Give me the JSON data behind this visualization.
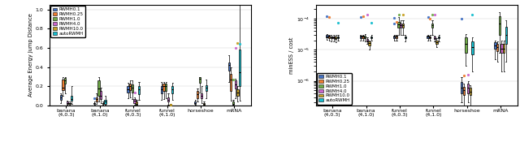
{
  "methods": [
    "RWMH0.1",
    "RWMH0.25",
    "RWMH1.0",
    "RWMH4.0",
    "RWMH10.0",
    "autoRWMH"
  ],
  "colors": [
    "#4472C4",
    "#ED7D31",
    "#70AD47",
    "#CC66CC",
    "#C9A227",
    "#17BECF"
  ],
  "categories": [
    "banana(4,0.3)",
    "banana(4,1.0)",
    "funnel(4,0.3)",
    "funnel(4,1.0)",
    "horseshoe",
    "mRNA"
  ],
  "left_ylabel": "Average Energy Jump Distance",
  "right_ylabel": "minESS / cost",
  "left_data": {
    "banana(4,0.3)": {
      "RWMH0.1": {
        "q1": 0.06,
        "med": 0.09,
        "q3": 0.11,
        "whislo": 0.03,
        "whishi": 0.13,
        "fliers": []
      },
      "RWMH0.25": {
        "q1": 0.16,
        "med": 0.19,
        "q3": 0.27,
        "whislo": 0.1,
        "whishi": 0.3,
        "fliers": []
      },
      "RWMH1.0": {
        "q1": 0.23,
        "med": 0.26,
        "q3": 0.29,
        "whislo": 0.13,
        "whishi": 0.3,
        "fliers": []
      },
      "RWMH4.0": {
        "q1": 0.02,
        "med": 0.03,
        "q3": 0.04,
        "whislo": 0.01,
        "whishi": 0.05,
        "fliers": []
      },
      "RWMH10.0": {
        "q1": 0.02,
        "med": 0.025,
        "q3": 0.03,
        "whislo": 0.01,
        "whishi": 0.04,
        "fliers": []
      },
      "autoRWMH": {
        "q1": 0.05,
        "med": 0.07,
        "q3": 0.1,
        "whislo": 0.02,
        "whishi": 0.2,
        "fliers": []
      }
    },
    "banana(4,1.0)": {
      "RWMH0.1": {
        "q1": 0.02,
        "med": 0.025,
        "q3": 0.03,
        "whislo": 0.01,
        "whishi": 0.04,
        "fliers": [
          0.08
        ]
      },
      "RWMH0.25": {
        "q1": 0.04,
        "med": 0.07,
        "q3": 0.09,
        "whislo": 0.02,
        "whishi": 0.13,
        "fliers": []
      },
      "RWMH1.0": {
        "q1": 0.1,
        "med": 0.18,
        "q3": 0.26,
        "whislo": 0.04,
        "whishi": 0.3,
        "fliers": []
      },
      "RWMH4.0": {
        "q1": 0.07,
        "med": 0.1,
        "q3": 0.15,
        "whislo": 0.03,
        "whishi": 0.19,
        "fliers": []
      },
      "RWMH10.0": {
        "q1": 0.02,
        "med": 0.025,
        "q3": 0.03,
        "whislo": 0.01,
        "whishi": 0.04,
        "fliers": []
      },
      "autoRWMH": {
        "q1": 0.02,
        "med": 0.04,
        "q3": 0.06,
        "whislo": 0.01,
        "whishi": 0.1,
        "fliers": []
      }
    },
    "funnel(4,0.3)": {
      "RWMH0.1": {
        "q1": 0.14,
        "med": 0.17,
        "q3": 0.2,
        "whislo": 0.08,
        "whishi": 0.24,
        "fliers": []
      },
      "RWMH0.25": {
        "q1": 0.16,
        "med": 0.2,
        "q3": 0.23,
        "whislo": 0.09,
        "whishi": 0.26,
        "fliers": []
      },
      "RWMH1.0": {
        "q1": 0.14,
        "med": 0.19,
        "q3": 0.22,
        "whislo": 0.07,
        "whishi": 0.26,
        "fliers": []
      },
      "RWMH4.0": {
        "q1": 0.03,
        "med": 0.05,
        "q3": 0.07,
        "whislo": 0.01,
        "whishi": 0.09,
        "fliers": [
          0.14
        ]
      },
      "RWMH10.0": {
        "q1": 0.01,
        "med": 0.02,
        "q3": 0.04,
        "whislo": 0.005,
        "whishi": 0.06,
        "fliers": []
      },
      "autoRWMH": {
        "q1": 0.12,
        "med": 0.17,
        "q3": 0.2,
        "whislo": 0.06,
        "whishi": 0.25,
        "fliers": []
      }
    },
    "funnel(4,1.0)": {
      "RWMH0.1": {
        "q1": 0.13,
        "med": 0.17,
        "q3": 0.2,
        "whislo": 0.06,
        "whishi": 0.25,
        "fliers": []
      },
      "RWMH0.25": {
        "q1": 0.15,
        "med": 0.2,
        "q3": 0.23,
        "whislo": 0.07,
        "whishi": 0.25,
        "fliers": []
      },
      "RWMH1.0": {
        "q1": 0.15,
        "med": 0.2,
        "q3": 0.23,
        "whislo": 0.08,
        "whishi": 0.25,
        "fliers": []
      },
      "RWMH4.0": {
        "q1": 0.04,
        "med": 0.06,
        "q3": 0.09,
        "whislo": 0.01,
        "whishi": 0.13,
        "fliers": []
      },
      "RWMH10.0": {
        "q1": 0.005,
        "med": 0.01,
        "q3": 0.015,
        "whislo": 0.001,
        "whishi": 0.02,
        "fliers": [
          0.01
        ]
      },
      "autoRWMH": {
        "q1": 0.13,
        "med": 0.17,
        "q3": 0.2,
        "whislo": 0.06,
        "whishi": 0.24,
        "fliers": []
      }
    },
    "horseshoe": {
      "RWMH0.1": {
        "q1": 0.02,
        "med": 0.03,
        "q3": 0.04,
        "whislo": 0.01,
        "whishi": 0.06,
        "fliers": []
      },
      "RWMH0.25": {
        "q1": 0.08,
        "med": 0.12,
        "q3": 0.15,
        "whislo": 0.04,
        "whishi": 0.18,
        "fliers": []
      },
      "RWMH1.0": {
        "q1": 0.24,
        "med": 0.28,
        "q3": 0.3,
        "whislo": 0.14,
        "whishi": 0.3,
        "fliers": []
      },
      "RWMH4.0": {
        "q1": 0.08,
        "med": 0.1,
        "q3": 0.13,
        "whislo": 0.03,
        "whishi": 0.2,
        "fliers": []
      },
      "RWMH10.0": {
        "q1": 0.01,
        "med": 0.02,
        "q3": 0.03,
        "whislo": 0.005,
        "whishi": 0.04,
        "fliers": []
      },
      "autoRWMH": {
        "q1": 0.15,
        "med": 0.19,
        "q3": 0.21,
        "whislo": 0.08,
        "whishi": 0.27,
        "fliers": []
      }
    },
    "mRNA": {
      "RWMH0.1": {
        "q1": 0.36,
        "med": 0.42,
        "q3": 0.45,
        "whislo": 0.25,
        "whishi": 0.52,
        "fliers": []
      },
      "RWMH0.25": {
        "q1": 0.15,
        "med": 0.27,
        "q3": 0.33,
        "whislo": 0.05,
        "whishi": 0.4,
        "fliers": []
      },
      "RWMH1.0": {
        "q1": 0.01,
        "med": 0.02,
        "q3": 0.04,
        "whislo": 0.005,
        "whishi": 0.06,
        "fliers": [
          0.27
        ]
      },
      "RWMH4.0": {
        "q1": 0.18,
        "med": 0.22,
        "q3": 0.26,
        "whislo": 0.08,
        "whishi": 0.28,
        "fliers": [
          0.6
        ]
      },
      "RWMH10.0": {
        "q1": 0.1,
        "med": 0.14,
        "q3": 0.17,
        "whislo": 0.04,
        "whishi": 0.2,
        "fliers": [
          0.65
        ]
      },
      "autoRWMH": {
        "q1": 0.2,
        "med": 0.35,
        "q3": 0.58,
        "whislo": 0.05,
        "whishi": 1.05,
        "fliers": [
          0.64
        ]
      }
    }
  },
  "right_data": {
    "banana(4,0.3)": {
      "RWMH0.1": {
        "q1": 2.5e-05,
        "med": 2.7e-05,
        "q3": 2.9e-05,
        "whislo": 2.1e-05,
        "whishi": 3.1e-05,
        "fliers": [
          0.00012
        ]
      },
      "RWMH0.25": {
        "q1": 2.4e-05,
        "med": 2.6e-05,
        "q3": 2.8e-05,
        "whislo": 2e-05,
        "whishi": 3e-05,
        "fliers": [
          0.000115
        ]
      },
      "RWMH1.0": {
        "q1": 2.3e-05,
        "med": 2.5e-05,
        "q3": 2.7e-05,
        "whislo": 1.8e-05,
        "whishi": 3e-05,
        "fliers": []
      },
      "RWMH4.0": {
        "q1": 2.3e-05,
        "med": 2.5e-05,
        "q3": 2.7e-05,
        "whislo": 1.8e-05,
        "whishi": 3e-05,
        "fliers": []
      },
      "RWMH10.0": {
        "q1": 2.2e-05,
        "med": 2.4e-05,
        "q3": 2.6e-05,
        "whislo": 1.7e-05,
        "whishi": 2.9e-05,
        "fliers": []
      },
      "autoRWMH": {
        "q1": 2.3e-05,
        "med": 2.5e-05,
        "q3": 2.7e-05,
        "whislo": 1.9e-05,
        "whishi": 3e-05,
        "fliers": [
          7.5e-05
        ]
      }
    },
    "banana(4,1.0)": {
      "RWMH0.1": {
        "q1": 2.4e-05,
        "med": 2.6e-05,
        "q3": 2.8e-05,
        "whislo": 2e-05,
        "whishi": 3e-05,
        "fliers": [
          0.00011
        ]
      },
      "RWMH0.25": {
        "q1": 2.4e-05,
        "med": 2.6e-05,
        "q3": 2.8e-05,
        "whislo": 2e-05,
        "whishi": 3e-05,
        "fliers": [
          0.00012
        ]
      },
      "RWMH1.0": {
        "q1": 2.3e-05,
        "med": 2.5e-05,
        "q3": 2.8e-05,
        "whislo": 1.8e-05,
        "whishi": 3.2e-05,
        "fliers": []
      },
      "RWMH4.0": {
        "q1": 1.8e-05,
        "med": 2e-05,
        "q3": 2.2e-05,
        "whislo": 1.5e-05,
        "whishi": 2.5e-05,
        "fliers": [
          0.00013
        ]
      },
      "RWMH10.0": {
        "q1": 1.4e-05,
        "med": 1.6e-05,
        "q3": 1.8e-05,
        "whislo": 1e-05,
        "whishi": 2e-05,
        "fliers": []
      },
      "autoRWMH": {
        "q1": 2.3e-05,
        "med": 2.5e-05,
        "q3": 2.7e-05,
        "whislo": 1.9e-05,
        "whishi": 2.9e-05,
        "fliers": [
          7.5e-05
        ]
      }
    },
    "funnel(4,0.3)": {
      "RWMH0.1": {
        "q1": 2.4e-05,
        "med": 2.6e-05,
        "q3": 2.8e-05,
        "whislo": 2e-05,
        "whishi": 3e-05,
        "fliers": [
          7e-05,
          0.000105
        ]
      },
      "RWMH0.25": {
        "q1": 2.4e-05,
        "med": 2.6e-05,
        "q3": 2.8e-05,
        "whislo": 2e-05,
        "whishi": 3e-05,
        "fliers": [
          8e-05
        ]
      },
      "RWMH1.0": {
        "q1": 5e-05,
        "med": 6.5e-05,
        "q3": 8e-05,
        "whislo": 3e-05,
        "whishi": 0.00011,
        "fliers": [
          0.00013
        ]
      },
      "RWMH4.0": {
        "q1": 5e-05,
        "med": 6e-05,
        "q3": 7e-05,
        "whislo": 3e-05,
        "whishi": 9e-05,
        "fliers": []
      },
      "RWMH10.0": {
        "q1": 5e-05,
        "med": 6e-05,
        "q3": 7e-05,
        "whislo": 3e-05,
        "whishi": 9e-05,
        "fliers": [
          0.00013
        ]
      },
      "autoRWMH": {
        "q1": 2.3e-05,
        "med": 2.5e-05,
        "q3": 2.7e-05,
        "whislo": 1.8e-05,
        "whishi": 2.9e-05,
        "fliers": []
      }
    },
    "funnel(4,1.0)": {
      "RWMH0.1": {
        "q1": 2.4e-05,
        "med": 2.6e-05,
        "q3": 2.8e-05,
        "whislo": 2e-05,
        "whishi": 3e-05,
        "fliers": [
          0.00011
        ]
      },
      "RWMH0.25": {
        "q1": 2.3e-05,
        "med": 2.5e-05,
        "q3": 2.7e-05,
        "whislo": 2e-05,
        "whishi": 2.9e-05,
        "fliers": [
          0.0001
        ]
      },
      "RWMH1.0": {
        "q1": 5e-05,
        "med": 6e-05,
        "q3": 7e-05,
        "whislo": 3e-05,
        "whishi": 9e-05,
        "fliers": [
          0.00013
        ]
      },
      "RWMH4.0": {
        "q1": 2.2e-05,
        "med": 2.4e-05,
        "q3": 2.6e-05,
        "whislo": 1.8e-05,
        "whishi": 2.8e-05,
        "fliers": [
          0.00013
        ]
      },
      "RWMH10.0": {
        "q1": 1.5e-05,
        "med": 1.7e-05,
        "q3": 2e-05,
        "whislo": 1.2e-05,
        "whishi": 2.3e-05,
        "fliers": []
      },
      "autoRWMH": {
        "q1": 2.3e-05,
        "med": 2.5e-05,
        "q3": 2.7e-05,
        "whislo": 1.8e-05,
        "whishi": 2.9e-05,
        "fliers": []
      }
    },
    "horseshoe": {
      "RWMH0.1": {
        "q1": 4e-07,
        "med": 6e-07,
        "q3": 9e-07,
        "whislo": 2e-07,
        "whishi": 1.3e-06,
        "fliers": [
          0.0001
        ]
      },
      "RWMH0.25": {
        "q1": 3.5e-07,
        "med": 5e-07,
        "q3": 6.5e-07,
        "whislo": 1.5e-07,
        "whishi": 8e-07,
        "fliers": [
          1.5e-06
        ]
      },
      "RWMH1.0": {
        "q1": 8e-06,
        "med": 1.5e-05,
        "q3": 2.5e-05,
        "whislo": 3e-06,
        "whishi": 3.2e-05,
        "fliers": []
      },
      "RWMH4.0": {
        "q1": 4e-07,
        "med": 6e-07,
        "q3": 8e-07,
        "whislo": 2e-07,
        "whishi": 1e-06,
        "fliers": [
          1.6e-06
        ]
      },
      "RWMH10.0": {
        "q1": 3.5e-07,
        "med": 4.5e-07,
        "q3": 6e-07,
        "whislo": 1.5e-07,
        "whishi": 7e-07,
        "fliers": []
      },
      "autoRWMH": {
        "q1": 7e-06,
        "med": 1.2e-05,
        "q3": 1.8e-05,
        "whislo": 2e-06,
        "whishi": 2.5e-05,
        "fliers": [
          0.00013
        ]
      }
    },
    "mRNA": {
      "RWMH0.1": {
        "q1": 1.1e-05,
        "med": 1.4e-05,
        "q3": 1.7e-05,
        "whislo": 5e-06,
        "whishi": 2e-05,
        "fliers": []
      },
      "RWMH0.25": {
        "q1": 9e-06,
        "med": 1.2e-05,
        "q3": 1.5e-05,
        "whislo": 4e-06,
        "whishi": 1.8e-05,
        "fliers": []
      },
      "RWMH1.0": {
        "q1": 3e-05,
        "med": 7e-05,
        "q3": 0.00012,
        "whislo": 8e-06,
        "whishi": 0.00016,
        "fliers": []
      },
      "RWMH4.0": {
        "q1": 8e-06,
        "med": 1.1e-05,
        "q3": 1.5e-05,
        "whislo": 2e-06,
        "whishi": 1.9e-05,
        "fliers": []
      },
      "RWMH10.0": {
        "q1": 8e-06,
        "med": 1.1e-05,
        "q3": 1.5e-05,
        "whislo": 2e-06,
        "whishi": 1.9e-05,
        "fliers": []
      },
      "autoRWMH": {
        "q1": 1.5e-05,
        "med": 3e-05,
        "q3": 5.5e-05,
        "whislo": 4e-06,
        "whishi": 9e-05,
        "fliers": []
      }
    }
  }
}
